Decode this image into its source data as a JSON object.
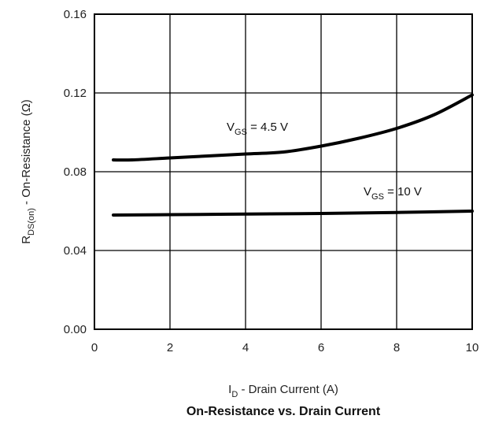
{
  "chart_data": {
    "type": "line",
    "title": "On-Resistance vs. Drain Current",
    "xlabel": {
      "main": "I",
      "sub": "D",
      "rest": " - Drain Current (A)"
    },
    "ylabel": {
      "main": "R",
      "sub": "DS(on)",
      "rest": " - On-Resistance (Ω)"
    },
    "xlim": [
      0,
      10
    ],
    "ylim": [
      0,
      0.16
    ],
    "xticks": [
      "0",
      "2",
      "4",
      "6",
      "8",
      "10"
    ],
    "yticks": [
      "0.00",
      "0.04",
      "0.08",
      "0.12",
      "0.16"
    ],
    "grid": true,
    "series": [
      {
        "name": {
          "main": "V",
          "sub": "GS",
          "rest": " = 4.5 V"
        },
        "x": [
          0.5,
          1,
          2,
          3,
          4,
          5,
          6,
          7,
          8,
          9,
          10
        ],
        "y": [
          0.086,
          0.086,
          0.087,
          0.088,
          0.089,
          0.09,
          0.093,
          0.097,
          0.102,
          0.109,
          0.119
        ]
      },
      {
        "name": {
          "main": "V",
          "sub": "GS",
          "rest": " = 10 V"
        },
        "x": [
          0.5,
          2,
          4,
          6,
          8,
          10
        ],
        "y": [
          0.058,
          0.0582,
          0.0585,
          0.0588,
          0.0593,
          0.06
        ]
      }
    ]
  }
}
